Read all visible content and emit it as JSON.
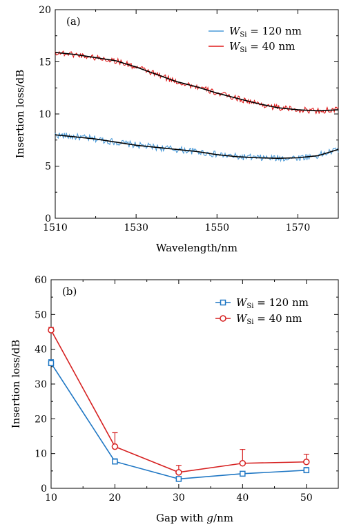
{
  "chart_data": [
    {
      "type": "line",
      "panel_label": "(a)",
      "xlabel": "Wavelength/nm",
      "ylabel": "Insertion loss/dB",
      "xlim": [
        1510,
        1580
      ],
      "ylim": [
        0,
        20
      ],
      "x_ticks": [
        1510,
        1530,
        1550,
        1570
      ],
      "y_ticks": [
        0,
        5,
        10,
        15,
        20
      ],
      "legend_position": "top-right",
      "grid": false,
      "fit_color": "#000000",
      "series": [
        {
          "name": "W_Si = 120 nm",
          "legend": {
            "symbol": "W",
            "subscript": "Si",
            "text": " = 120 nm"
          },
          "color": "#4a9ad8",
          "noise": 0.32,
          "x": [
            1510,
            1515,
            1520,
            1525,
            1530,
            1535,
            1540,
            1545,
            1550,
            1555,
            1560,
            1565,
            1570,
            1575,
            1580
          ],
          "fit": [
            8.0,
            7.8,
            7.6,
            7.3,
            7.0,
            6.8,
            6.6,
            6.4,
            6.1,
            5.9,
            5.8,
            5.75,
            5.8,
            6.0,
            6.6
          ]
        },
        {
          "name": "W_Si = 40 nm",
          "legend": {
            "symbol": "W",
            "subscript": "Si",
            "text": " = 40 nm"
          },
          "color": "#e01a1a",
          "noise": 0.28,
          "x": [
            1510,
            1515,
            1520,
            1525,
            1530,
            1535,
            1540,
            1545,
            1550,
            1555,
            1560,
            1565,
            1570,
            1575,
            1580
          ],
          "fit": [
            15.9,
            15.7,
            15.4,
            15.1,
            14.5,
            13.8,
            13.1,
            12.6,
            12.0,
            11.5,
            11.0,
            10.6,
            10.4,
            10.3,
            10.4
          ]
        }
      ]
    },
    {
      "type": "line",
      "panel_label": "(b)",
      "xlabel": "Gap with g/nm",
      "xlabel_parts": {
        "before": "Gap with ",
        "italic": "g",
        "after": "/nm"
      },
      "ylabel": "Insertion loss/dB",
      "xlim": [
        10,
        55
      ],
      "ylim": [
        0,
        60
      ],
      "x_ticks": [
        10,
        20,
        30,
        40,
        50
      ],
      "y_ticks": [
        0,
        10,
        20,
        30,
        40,
        50,
        60
      ],
      "legend_position": "top-right",
      "grid": false,
      "series": [
        {
          "name": "W_Si = 120 nm",
          "legend": {
            "symbol": "W",
            "subscript": "Si",
            "text": " = 120 nm"
          },
          "color": "#1f77c4",
          "marker": "square",
          "x": [
            10,
            20,
            30,
            40,
            50
          ],
          "y": [
            36.0,
            7.7,
            2.7,
            4.2,
            5.2
          ],
          "err": [
            1.0,
            0.8,
            0.5,
            0.5,
            0.8
          ]
        },
        {
          "name": "W_Si = 40 nm",
          "legend": {
            "symbol": "W",
            "subscript": "Si",
            "text": " = 40 nm"
          },
          "color": "#d62020",
          "marker": "circle",
          "x": [
            10,
            20,
            30,
            40,
            50
          ],
          "y": [
            45.5,
            12.0,
            4.6,
            7.2,
            7.6
          ],
          "err": [
            0.8,
            4.0,
            2.0,
            4.0,
            2.2
          ]
        }
      ]
    }
  ]
}
